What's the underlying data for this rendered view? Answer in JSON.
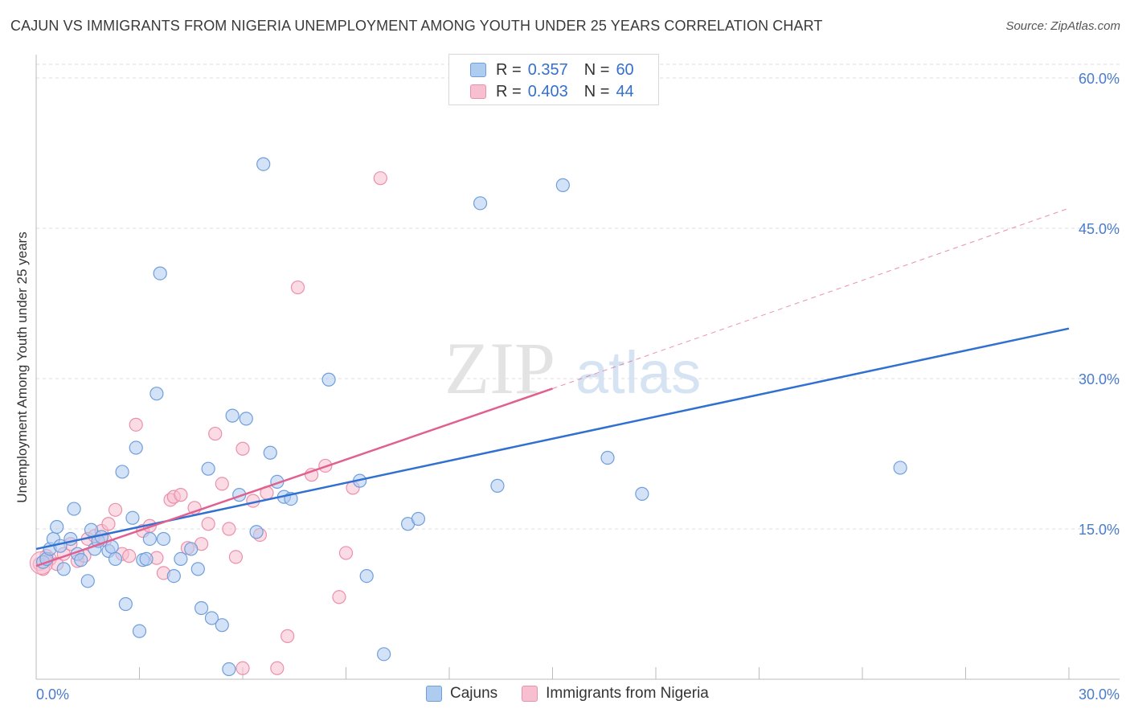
{
  "header": {
    "title": "CAJUN VS IMMIGRANTS FROM NIGERIA UNEMPLOYMENT AMONG YOUTH UNDER 25 YEARS CORRELATION CHART",
    "source": "Source: ZipAtlas.com"
  },
  "legend": {
    "rows": [
      {
        "r_label": "R =",
        "r_value": "0.357",
        "n_label": "N =",
        "n_value": "60"
      },
      {
        "r_label": "R =",
        "r_value": "0.403",
        "n_label": "N =",
        "n_value": "44"
      }
    ],
    "bottom": [
      "Cajuns",
      "Immigrants from Nigeria"
    ]
  },
  "watermark": {
    "part1": "ZIP",
    "part2": "atlas"
  },
  "colors": {
    "cajun_fill": "#aecbf0",
    "cajun_stroke": "#6f9fdb",
    "cajun_line": "#3070d0",
    "nigeria_fill": "#f8bfd0",
    "nigeria_stroke": "#ec8fab",
    "nigeria_line": "#e0608f",
    "grid": "#dddddd",
    "tick_label": "#4a7ccc"
  },
  "chart_data": {
    "type": "scatter",
    "title": "CAJUN VS IMMIGRANTS FROM NIGERIA UNEMPLOYMENT AMONG YOUTH UNDER 25 YEARS CORRELATION CHART",
    "xlabel": "",
    "ylabel": "Unemployment Among Youth under 25 years",
    "xlim": [
      0,
      30
    ],
    "ylim": [
      0,
      60
    ],
    "x_tick_labels": [
      "0.0%",
      "30.0%"
    ],
    "y_ticks": [
      15,
      30,
      45,
      60
    ],
    "y_tick_labels": [
      "15.0%",
      "30.0%",
      "45.0%",
      "60.0%"
    ],
    "grid": true,
    "series": [
      {
        "name": "Cajuns",
        "r": 0.357,
        "n": 60,
        "trend": {
          "x": [
            0,
            30
          ],
          "y": [
            13.0,
            35.0
          ],
          "style": "solid"
        },
        "points": [
          [
            0.2,
            11.7
          ],
          [
            0.3,
            12.0
          ],
          [
            0.4,
            13.0
          ],
          [
            0.5,
            14.0
          ],
          [
            0.6,
            15.2
          ],
          [
            0.7,
            13.3
          ],
          [
            0.8,
            11.0
          ],
          [
            1.0,
            14.0
          ],
          [
            1.1,
            17.0
          ],
          [
            1.2,
            12.5
          ],
          [
            1.3,
            11.9
          ],
          [
            1.5,
            9.8
          ],
          [
            1.6,
            14.9
          ],
          [
            1.7,
            13.0
          ],
          [
            1.8,
            13.8
          ],
          [
            1.9,
            14.2
          ],
          [
            2.1,
            12.8
          ],
          [
            2.2,
            13.2
          ],
          [
            2.3,
            12.0
          ],
          [
            2.5,
            20.7
          ],
          [
            2.6,
            7.5
          ],
          [
            2.8,
            16.1
          ],
          [
            2.9,
            23.1
          ],
          [
            3.0,
            4.8
          ],
          [
            3.1,
            11.9
          ],
          [
            3.2,
            12.0
          ],
          [
            3.3,
            14.0
          ],
          [
            3.5,
            28.5
          ],
          [
            3.6,
            40.5
          ],
          [
            3.7,
            14.0
          ],
          [
            4.0,
            10.3
          ],
          [
            4.2,
            12.0
          ],
          [
            4.5,
            13.0
          ],
          [
            4.7,
            11.0
          ],
          [
            4.8,
            7.1
          ],
          [
            5.0,
            21.0
          ],
          [
            5.1,
            6.1
          ],
          [
            5.4,
            5.4
          ],
          [
            5.6,
            1.0
          ],
          [
            5.7,
            26.3
          ],
          [
            5.9,
            18.4
          ],
          [
            6.1,
            26.0
          ],
          [
            6.4,
            14.7
          ],
          [
            6.6,
            51.4
          ],
          [
            6.8,
            22.6
          ],
          [
            7.0,
            19.7
          ],
          [
            7.2,
            18.2
          ],
          [
            7.4,
            18.0
          ],
          [
            8.5,
            29.9
          ],
          [
            9.4,
            19.8
          ],
          [
            9.6,
            10.3
          ],
          [
            10.1,
            2.5
          ],
          [
            10.8,
            15.5
          ],
          [
            11.1,
            16.0
          ],
          [
            12.9,
            47.5
          ],
          [
            13.4,
            19.3
          ],
          [
            15.3,
            49.3
          ],
          [
            16.6,
            22.1
          ],
          [
            17.6,
            18.5
          ],
          [
            25.1,
            21.1
          ]
        ]
      },
      {
        "name": "Immigrants from Nigeria",
        "r": 0.403,
        "n": 44,
        "trend": {
          "x": [
            0,
            15
          ],
          "y": [
            11.3,
            29.0
          ],
          "style": "solid",
          "extended_to": {
            "x": 30,
            "y": 47.0,
            "style": "dashed"
          }
        },
        "points": [
          [
            0.1,
            11.5
          ],
          [
            0.2,
            11.0
          ],
          [
            0.3,
            12.3
          ],
          [
            0.4,
            12.0
          ],
          [
            0.6,
            11.5
          ],
          [
            0.8,
            12.5
          ],
          [
            1.0,
            13.5
          ],
          [
            1.2,
            11.8
          ],
          [
            1.4,
            12.3
          ],
          [
            1.5,
            14.0
          ],
          [
            1.7,
            14.3
          ],
          [
            1.9,
            14.8
          ],
          [
            2.0,
            13.9
          ],
          [
            2.1,
            15.5
          ],
          [
            2.3,
            16.9
          ],
          [
            2.5,
            12.5
          ],
          [
            2.7,
            12.3
          ],
          [
            2.9,
            25.4
          ],
          [
            3.1,
            14.8
          ],
          [
            3.3,
            15.3
          ],
          [
            3.5,
            12.1
          ],
          [
            3.7,
            10.6
          ],
          [
            3.9,
            17.9
          ],
          [
            4.0,
            18.2
          ],
          [
            4.2,
            18.4
          ],
          [
            4.4,
            13.1
          ],
          [
            4.6,
            17.1
          ],
          [
            4.8,
            13.5
          ],
          [
            5.0,
            15.5
          ],
          [
            5.2,
            24.5
          ],
          [
            5.4,
            19.5
          ],
          [
            5.6,
            15.0
          ],
          [
            5.8,
            12.2
          ],
          [
            6.0,
            23.0
          ],
          [
            6.3,
            17.8
          ],
          [
            6.5,
            14.4
          ],
          [
            6.7,
            18.6
          ],
          [
            7.0,
            1.1
          ],
          [
            7.3,
            4.3
          ],
          [
            7.6,
            39.1
          ],
          [
            8.0,
            20.4
          ],
          [
            8.4,
            21.3
          ],
          [
            8.8,
            8.2
          ],
          [
            9.0,
            12.6
          ]
        ]
      }
    ],
    "extra_points": {
      "Immigrants from Nigeria": [
        [
          6.0,
          1.1
        ],
        [
          9.2,
          19.1
        ],
        [
          10.0,
          50.0
        ]
      ]
    }
  }
}
